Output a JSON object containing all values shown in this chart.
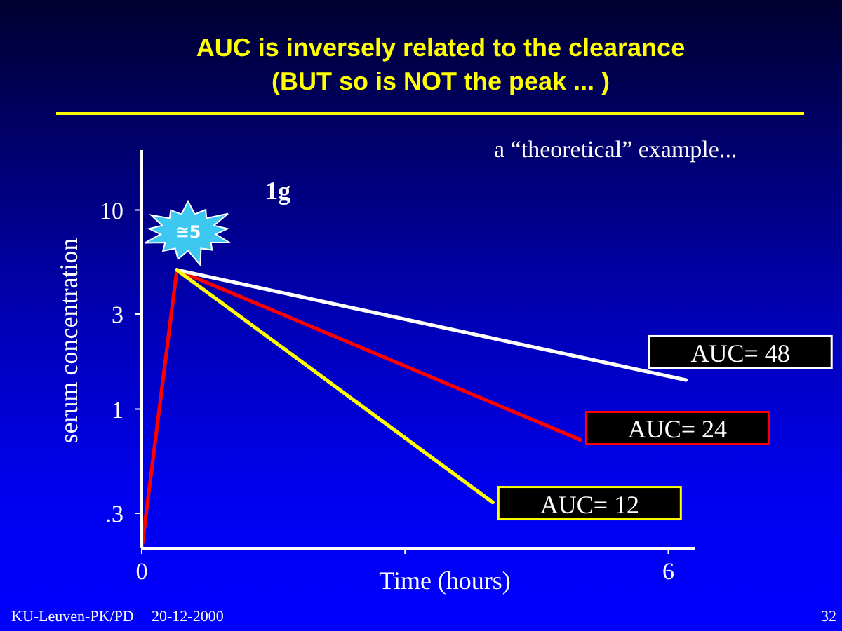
{
  "chart_data": {
    "type": "line",
    "title": "AUC is inversely related to the clearance\n(BUT so is NOT the peak ... )",
    "xlabel": "Time (hours)",
    "ylabel": "serum concentration",
    "series": [
      {
        "color": "#ff0000",
        "x": [
          0,
          0.4,
          5
        ],
        "values": [
          0.2,
          5,
          0.7
        ]
      },
      {
        "color": "#ffffff",
        "x": [
          0.4,
          6.2
        ],
        "values": [
          5,
          1.4
        ]
      },
      {
        "color": "#ffff00",
        "x": [
          0.4,
          4
        ],
        "values": [
          5,
          0.34
        ]
      }
    ],
    "xlim": [
      0,
      6.3
    ],
    "xticks": [
      0,
      {
        "value": 3,
        "label": null
      },
      6
    ],
    "ylim": [
      0.2,
      20
    ],
    "yticks": [
      {
        "value": 0.3,
        "label": ".3"
      },
      1,
      3,
      10
    ],
    "log": true,
    "annotations": [
      "a “theoretical” example...",
      "1g",
      {
        "text": "≅5",
        "x": 0.4,
        "y": 5
      },
      {
        "text": "AUC= 48",
        "x": 5.75,
        "y": 1.55
      },
      {
        "text": "AUC= 24",
        "x": 5,
        "y": 0.7
      },
      {
        "text": "AUC= 12",
        "x": 4,
        "y": 0.34
      },
      "KU-Leuven-PK/PD",
      "20-12-2000",
      "32"
    ]
  }
}
